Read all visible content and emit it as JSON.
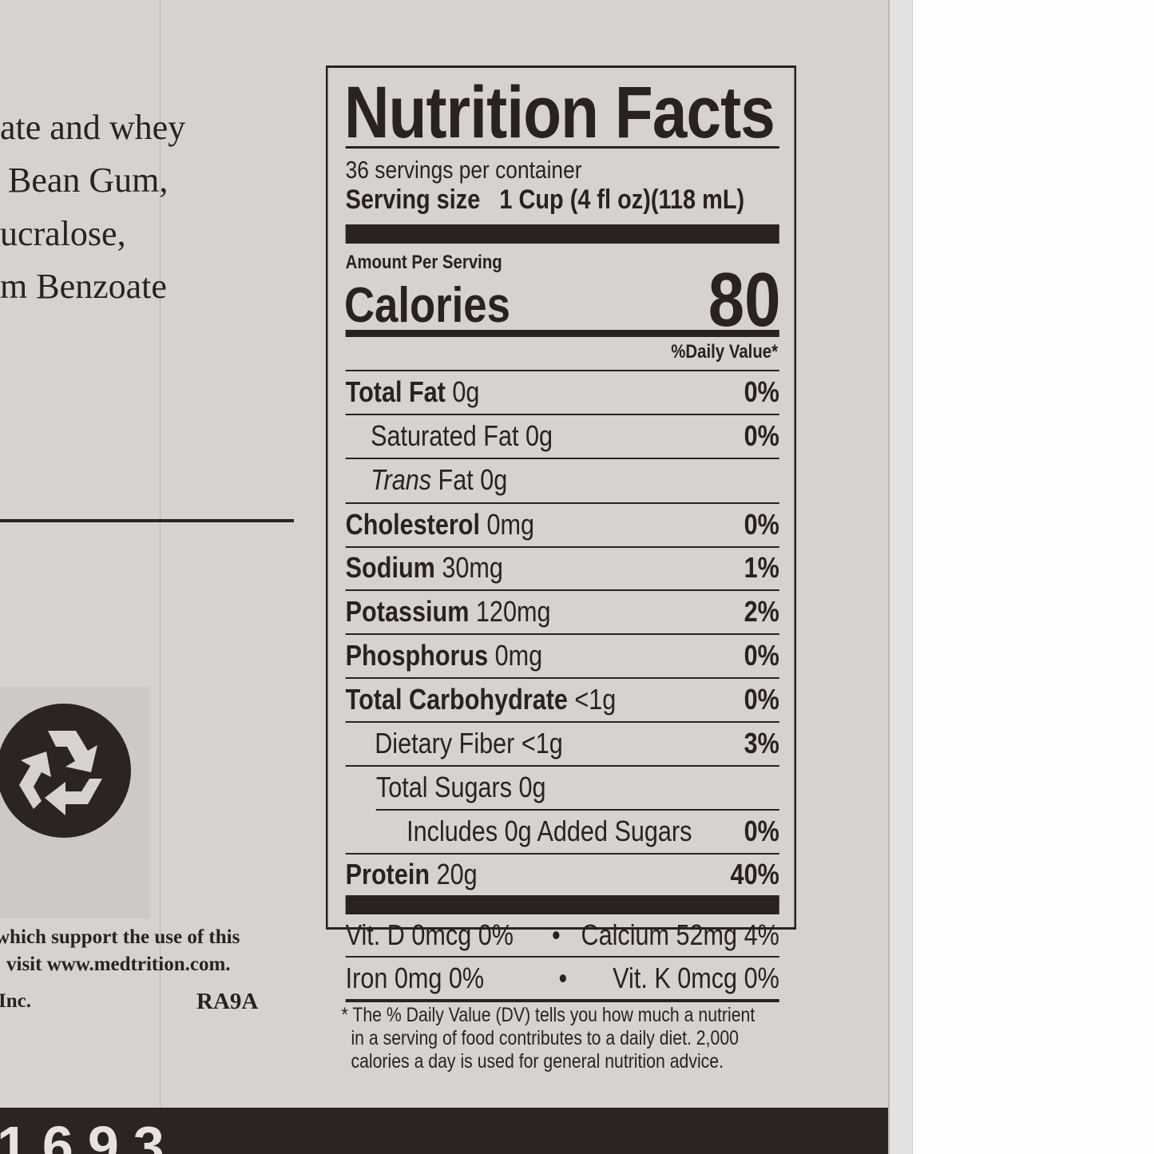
{
  "ingredients_fragment": [
    "ate and whey",
    "Bean Gum,",
    "ucralose,",
    "m Benzoate"
  ],
  "footer_fragment": {
    "line1": "which support the use of this",
    "line2": "visit www.medtrition.com.",
    "company_suffix": "Inc.",
    "code": "RA9A"
  },
  "bottom_bar_number": "1693",
  "recycle_icon": "recycle-icon",
  "label": {
    "title": "Nutrition Facts",
    "servings": "36 servings per container",
    "serving_size_label": "Serving size",
    "serving_size_value": "1 Cup (4 fl oz)(118 mL)",
    "amount_per_serving": "Amount Per Serving",
    "calories_label": "Calories",
    "calories_value": "80",
    "daily_value_header": "%Daily Value*",
    "rows": [
      {
        "name": "Total Fat",
        "amount": "0g",
        "dv": "0%"
      },
      {
        "name": "Saturated Fat",
        "amount": "0g",
        "dv": "0%"
      },
      {
        "name_italic": "Trans",
        "name": "Fat",
        "amount": "0g",
        "dv": ""
      },
      {
        "name": "Cholesterol",
        "amount": "0mg",
        "dv": "0%"
      },
      {
        "name": "Sodium",
        "amount": "30mg",
        "dv": "1%"
      },
      {
        "name": "Potassium",
        "amount": "120mg",
        "dv": "2%"
      },
      {
        "name": "Phosphorus",
        "amount": "0mg",
        "dv": "0%"
      },
      {
        "name": "Total Carbohydrate",
        "amount": "<1g",
        "dv": "0%"
      },
      {
        "name": "Dietary Fiber",
        "amount": "<1g",
        "dv": "3%"
      },
      {
        "name": "Total Sugars",
        "amount": "0g",
        "dv": ""
      },
      {
        "name": "Includes 0g Added Sugars",
        "amount": "",
        "dv": "0%"
      },
      {
        "name": "Protein",
        "amount": "20g",
        "dv": "40%"
      }
    ],
    "vitamins": {
      "row1_left": "Vit. D 0mcg  0%",
      "row1_right": "Calcium 52mg 4%",
      "row2_left": "Iron 0mg  0%",
      "row2_right": "Vit. K 0mcg 0%",
      "bullet": "•"
    },
    "footnote": [
      "* The % Daily Value (DV) tells you how much a nutrient",
      "in a serving of food contributes to a daily diet. 2,000",
      "calories a day is used for general nutrition advice."
    ]
  }
}
